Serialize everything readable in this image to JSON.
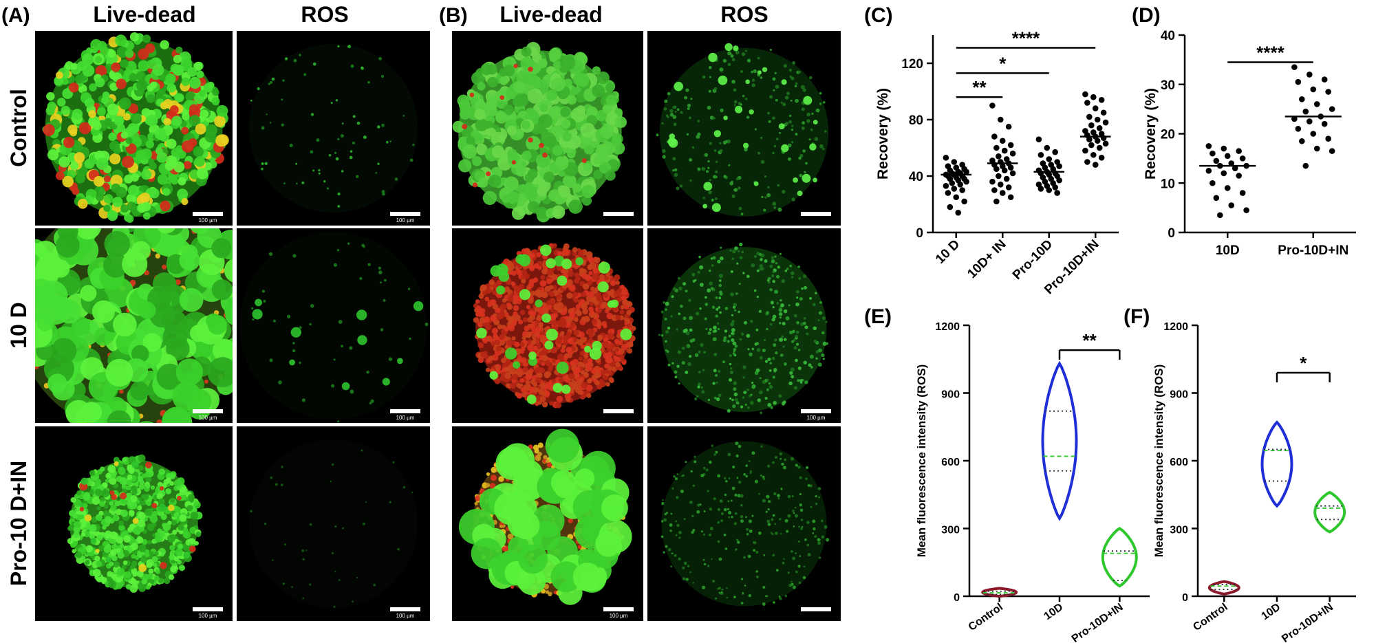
{
  "figure": {
    "panels": [
      {
        "label": "(A)",
        "columns": [
          "Live-dead",
          "ROS"
        ],
        "rows": [
          "Control",
          "10 D",
          "Pro-10 D+IN"
        ]
      },
      {
        "label": "(B)",
        "columns": [
          "Live-dead",
          "ROS"
        ]
      }
    ],
    "scale_bar_label": "100 µm"
  },
  "chart_data": [
    {
      "type": "dot",
      "label": "(C)",
      "y_label": "Recovery (%)",
      "categories": [
        "10 D",
        "10D+ IN",
        "Pro-10D",
        "Pro-10D+IN"
      ],
      "values": [
        [
          53,
          50,
          48,
          47,
          46,
          45,
          44,
          43,
          43,
          42,
          42,
          41,
          41,
          40,
          40,
          39,
          38,
          38,
          37,
          36,
          35,
          34,
          33,
          31,
          30,
          28,
          25,
          22,
          18,
          14
        ],
        [
          90,
          80,
          75,
          68,
          65,
          62,
          60,
          58,
          56,
          54,
          52,
          51,
          50,
          49,
          48,
          47,
          46,
          45,
          44,
          42,
          40,
          38,
          36,
          34,
          32,
          30,
          28,
          25,
          22
        ],
        [
          66,
          60,
          57,
          55,
          52,
          50,
          49,
          48,
          47,
          46,
          45,
          44,
          43,
          42,
          42,
          41,
          40,
          39,
          38,
          37,
          36,
          35,
          34,
          33,
          32,
          31,
          30,
          28
        ],
        [
          98,
          96,
          94,
          92,
          88,
          85,
          82,
          80,
          78,
          76,
          74,
          72,
          71,
          70,
          69,
          68,
          67,
          66,
          65,
          63,
          62,
          60,
          58,
          55,
          53,
          50,
          48
        ]
      ],
      "means": [
        41,
        49,
        43,
        68
      ],
      "color": "#000000",
      "ylim": [
        0,
        140
      ],
      "yticks": [
        0,
        40,
        80,
        120
      ],
      "bracket_ends": false,
      "comparisons": [
        {
          "label": "**",
          "from": 0,
          "to": 1,
          "y": 96
        },
        {
          "label": "*",
          "from": 0,
          "to": 2,
          "y": 113
        },
        {
          "label": "****",
          "from": 0,
          "to": 3,
          "y": 131
        }
      ]
    },
    {
      "type": "dot",
      "label": "(D)",
      "y_label": "Recovery (%)",
      "categories": [
        "10D",
        "Pro-10D+IN"
      ],
      "values": [
        [
          17.5,
          17,
          16.5,
          16,
          15.5,
          15,
          14.5,
          14,
          13.5,
          13.5,
          13,
          12.5,
          12,
          11.5,
          10,
          9,
          8,
          7,
          5.5,
          4.5,
          3.5
        ],
        [
          33.5,
          32,
          31,
          30.5,
          29,
          28.5,
          27,
          26,
          25,
          24.5,
          23.5,
          23,
          22.5,
          22,
          21,
          20,
          19,
          18.5,
          17,
          16.5,
          13.5
        ]
      ],
      "means": [
        13.5,
        23.5
      ],
      "color": "#000000",
      "ylim": [
        0,
        40
      ],
      "yticks": [
        0,
        10,
        20,
        30,
        40
      ],
      "bracket_ends": false,
      "comparisons": [
        {
          "label": "****",
          "from": 0,
          "to": 1,
          "y": 34.5
        }
      ]
    },
    {
      "type": "violin",
      "label": "(E)",
      "y_label": "Mean fluorescence intensity (ROS)",
      "categories": [
        "Control",
        "10D",
        "Pro-10D+IN"
      ],
      "values": [
        {
          "min": 0,
          "q1": 8,
          "median": 15,
          "q3": 22,
          "max": 35
        },
        {
          "min": 345,
          "q1": 555,
          "median": 620,
          "q3": 820,
          "max": 1030
        },
        {
          "min": 45,
          "q1": 70,
          "median": 190,
          "q3": 200,
          "max": 300
        }
      ],
      "colors": [
        "#8b1a2b",
        "#1f2fd6",
        "#2ec82e"
      ],
      "ylim": [
        0,
        1200
      ],
      "yticks": [
        0,
        300,
        600,
        900,
        1200
      ],
      "bracket_ends": true,
      "comparisons": [
        {
          "label": "**",
          "from": 1,
          "to": 2,
          "y": 1090
        }
      ]
    },
    {
      "type": "violin",
      "label": "(F)",
      "y_label": "Mean fluorescence intensity (ROS)",
      "categories": [
        "Control",
        "10D",
        "Pro-10D+IN"
      ],
      "values": [
        {
          "min": 10,
          "q1": 30,
          "median": 45,
          "q3": 52,
          "max": 65
        },
        {
          "min": 400,
          "q1": 510,
          "median": 645,
          "q3": 650,
          "max": 770
        },
        {
          "min": 285,
          "q1": 340,
          "median": 390,
          "q3": 400,
          "max": 460
        }
      ],
      "colors": [
        "#8b1a2b",
        "#1f2fd6",
        "#2ec82e"
      ],
      "ylim": [
        0,
        1200
      ],
      "yticks": [
        0,
        300,
        600,
        900,
        1200
      ],
      "bracket_ends": true,
      "comparisons": [
        {
          "label": "*",
          "from": 1,
          "to": 2,
          "y": 990
        }
      ]
    }
  ]
}
